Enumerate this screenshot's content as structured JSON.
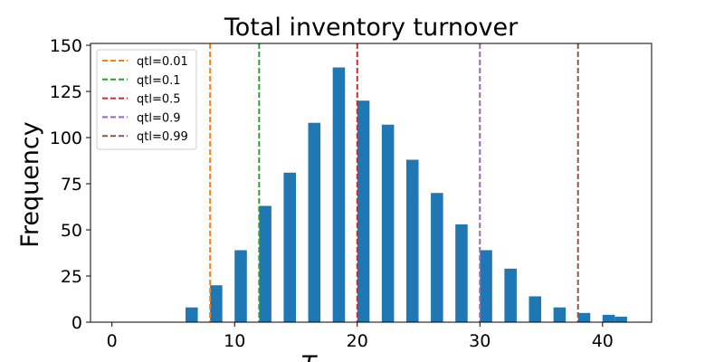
{
  "chart_data": {
    "type": "bar",
    "title": "Total inventory turnover",
    "xlabel": "T",
    "ylabel": "Frequency",
    "xlim": [
      -1.75,
      44
    ],
    "ylim": [
      0,
      151
    ],
    "xticks": [
      0,
      10,
      20,
      30,
      40
    ],
    "yticks": [
      0,
      25,
      50,
      75,
      100,
      125,
      150
    ],
    "bar_width": 1.0,
    "bar_color": "#1f77b4",
    "bars": [
      {
        "x": 6.5,
        "value": 8
      },
      {
        "x": 8.5,
        "value": 20
      },
      {
        "x": 10.5,
        "value": 39
      },
      {
        "x": 12.5,
        "value": 63
      },
      {
        "x": 14.5,
        "value": 81
      },
      {
        "x": 16.5,
        "value": 108
      },
      {
        "x": 18.5,
        "value": 138
      },
      {
        "x": 20.5,
        "value": 120
      },
      {
        "x": 22.5,
        "value": 107
      },
      {
        "x": 24.5,
        "value": 88
      },
      {
        "x": 26.5,
        "value": 70
      },
      {
        "x": 28.5,
        "value": 53
      },
      {
        "x": 30.5,
        "value": 39
      },
      {
        "x": 32.5,
        "value": 29
      },
      {
        "x": 34.5,
        "value": 14
      },
      {
        "x": 36.5,
        "value": 8
      },
      {
        "x": 38.5,
        "value": 5
      },
      {
        "x": 40.5,
        "value": 4
      },
      {
        "x": 41.5,
        "value": 3
      }
    ],
    "quantile_lines": [
      {
        "label": "qtl=0.01",
        "x": 8.0,
        "color": "#ff7f0e"
      },
      {
        "label": "qtl=0.1",
        "x": 12.0,
        "color": "#2ca02c"
      },
      {
        "label": "qtl=0.5",
        "x": 20.0,
        "color": "#d62728"
      },
      {
        "label": "qtl=0.9",
        "x": 30.0,
        "color": "#9467bd"
      },
      {
        "label": "qtl=0.99",
        "x": 38.0,
        "color": "#8c564b"
      }
    ],
    "legend_position": "top-left",
    "grid": false
  }
}
